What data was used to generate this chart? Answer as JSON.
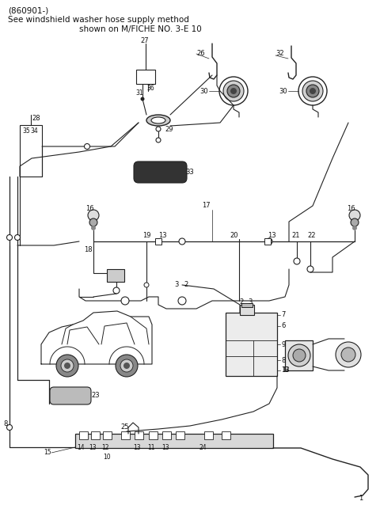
{
  "title_line1": "(860901-)",
  "title_line2": "See windshield washer hose supply method",
  "title_line3": "shown on M/FICHE NO. 3-E 10",
  "bg_color": "#ffffff",
  "line_color": "#222222",
  "text_color": "#111111",
  "fig_width": 4.8,
  "fig_height": 6.38,
  "dpi": 100
}
